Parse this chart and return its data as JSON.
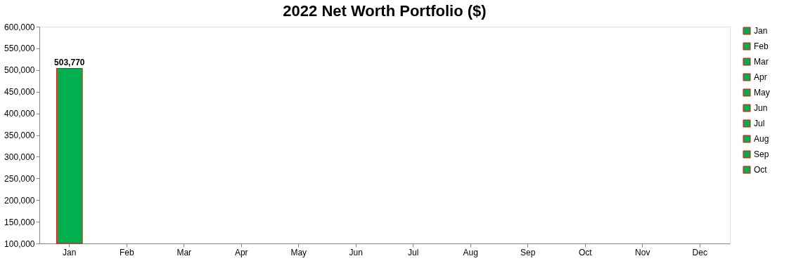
{
  "chart_data": {
    "type": "bar",
    "title": "2022 Net Worth Portfolio ($)",
    "categories": [
      "Jan",
      "Feb",
      "Mar",
      "Apr",
      "May",
      "Jun",
      "Jul",
      "Aug",
      "Sep",
      "Oct",
      "Nov",
      "Dec"
    ],
    "series": [
      {
        "name": "Jan",
        "color": "#00b050",
        "values": [
          503770,
          null,
          null,
          null,
          null,
          null,
          null,
          null,
          null,
          null,
          null,
          null
        ],
        "value_labels": [
          "503,770",
          null,
          null,
          null,
          null,
          null,
          null,
          null,
          null,
          null,
          null,
          null
        ]
      },
      {
        "name": "Feb",
        "color": "#00b050",
        "values": [
          null,
          null,
          null,
          null,
          null,
          null,
          null,
          null,
          null,
          null,
          null,
          null
        ]
      },
      {
        "name": "Mar",
        "color": "#00b050",
        "values": [
          null,
          null,
          null,
          null,
          null,
          null,
          null,
          null,
          null,
          null,
          null,
          null
        ]
      },
      {
        "name": "Apr",
        "color": "#00b050",
        "values": [
          null,
          null,
          null,
          null,
          null,
          null,
          null,
          null,
          null,
          null,
          null,
          null
        ]
      },
      {
        "name": "May",
        "color": "#00b050",
        "values": [
          null,
          null,
          null,
          null,
          null,
          null,
          null,
          null,
          null,
          null,
          null,
          null
        ]
      },
      {
        "name": "Jun",
        "color": "#00b050",
        "values": [
          null,
          null,
          null,
          null,
          null,
          null,
          null,
          null,
          null,
          null,
          null,
          null
        ]
      },
      {
        "name": "Jul",
        "color": "#00b050",
        "values": [
          null,
          null,
          null,
          null,
          null,
          null,
          null,
          null,
          null,
          null,
          null,
          null
        ]
      },
      {
        "name": "Aug",
        "color": "#00b050",
        "values": [
          null,
          null,
          null,
          null,
          null,
          null,
          null,
          null,
          null,
          null,
          null,
          null
        ]
      },
      {
        "name": "Sep",
        "color": "#00b050",
        "values": [
          null,
          null,
          null,
          null,
          null,
          null,
          null,
          null,
          null,
          null,
          null,
          null
        ]
      },
      {
        "name": "Oct",
        "color": "#00b050",
        "values": [
          null,
          null,
          null,
          null,
          null,
          null,
          null,
          null,
          null,
          null,
          null,
          null
        ]
      }
    ],
    "ylim": [
      100000,
      600000
    ],
    "yticks": [
      {
        "value": 100000,
        "label": "100,000"
      },
      {
        "value": 150000,
        "label": "150,000"
      },
      {
        "value": 200000,
        "label": "200,000"
      },
      {
        "value": 250000,
        "label": "250,000"
      },
      {
        "value": 300000,
        "label": "300,000"
      },
      {
        "value": 350000,
        "label": "350,000"
      },
      {
        "value": 400000,
        "label": "400,000"
      },
      {
        "value": 450000,
        "label": "450,000"
      },
      {
        "value": 500000,
        "label": "500,000"
      },
      {
        "value": 550000,
        "label": "550,000"
      },
      {
        "value": 600000,
        "label": "600,000"
      }
    ],
    "grid": false,
    "legend": "right"
  }
}
